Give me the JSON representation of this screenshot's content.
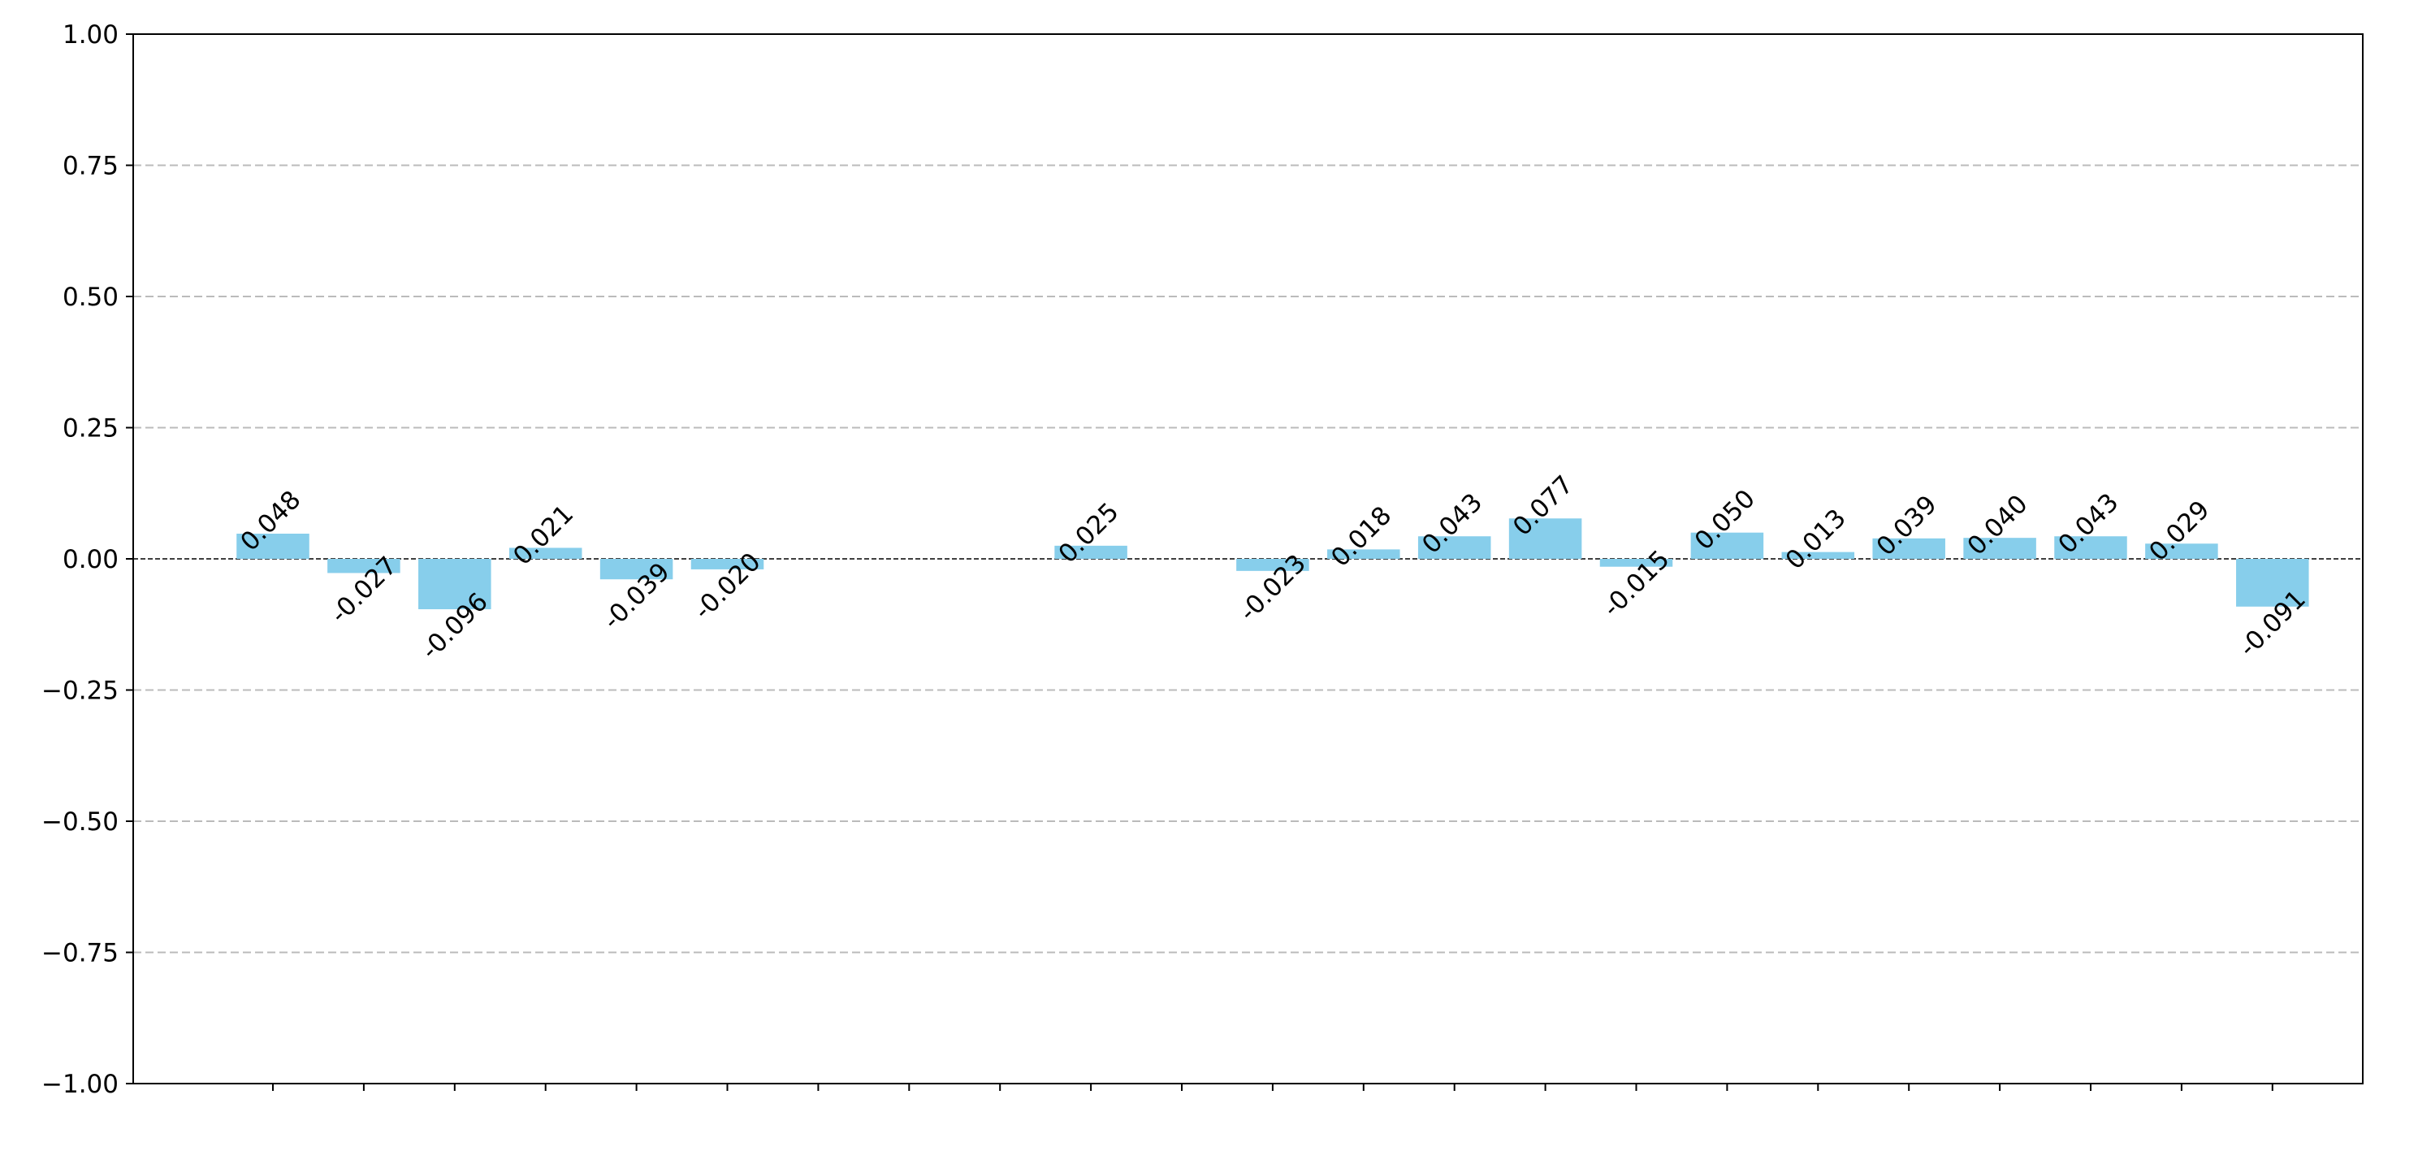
{
  "chart_data": {
    "type": "bar",
    "categories": [
      null,
      null,
      null,
      null,
      null,
      null,
      null,
      null,
      null,
      null,
      null,
      null,
      null,
      null,
      null,
      null,
      null,
      null,
      null,
      null,
      null,
      null,
      null
    ],
    "values": [
      0.048,
      -0.027,
      -0.096,
      0.021,
      -0.039,
      -0.02,
      null,
      null,
      null,
      0.025,
      null,
      -0.023,
      0.018,
      0.043,
      0.077,
      -0.015,
      0.05,
      0.013,
      0.039,
      0.04,
      0.043,
      0.029,
      -0.091
    ],
    "value_labels": [
      "0.048",
      "-0.027",
      "-0.096",
      "0.021",
      "-0.039",
      "-0.020",
      null,
      null,
      null,
      "0.025",
      null,
      "-0.023",
      "0.018",
      "0.043",
      "0.077",
      "-0.015",
      "0.050",
      "0.013",
      "0.039",
      "0.040",
      "0.043",
      "0.029",
      "-0.091"
    ],
    "color": "#87ceeb",
    "ylim": [
      -1,
      1
    ],
    "yticks": [
      {
        "value": -1,
        "label": "−1.00"
      },
      {
        "value": -0.75,
        "label": "−0.75"
      },
      {
        "value": -0.5,
        "label": "−0.50"
      },
      {
        "value": -0.25,
        "label": "−0.25"
      },
      {
        "value": 0,
        "label": "0.00"
      },
      {
        "value": 0.25,
        "label": "0.25"
      },
      {
        "value": 0.5,
        "label": "0.50"
      },
      {
        "value": 0.75,
        "label": "0.75"
      },
      {
        "value": 1,
        "label": "1.00"
      }
    ],
    "grid": true
  }
}
